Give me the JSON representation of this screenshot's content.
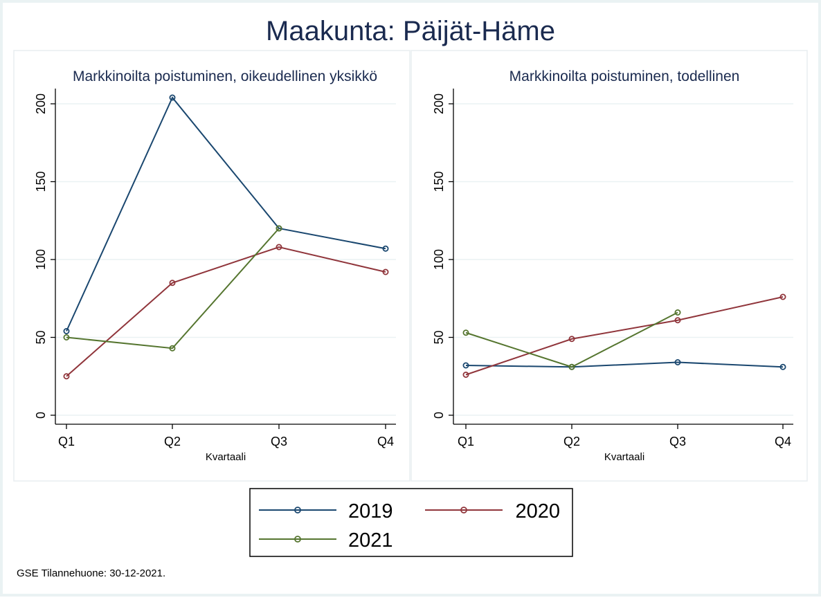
{
  "title": "Maakunta: Päijät-Häme",
  "note": "GSE Tilannehuone: 30-12-2021.",
  "colors": {
    "2019": "#1a476f",
    "2020": "#90353b",
    "2021": "#55752f",
    "title": "#1a2a4f",
    "grid": "#eaf2f3",
    "panel_border": "#e8eef0",
    "outer_bg": "#eaf2f3"
  },
  "legend": {
    "items": [
      {
        "name": "2019",
        "color": "#1a476f"
      },
      {
        "name": "2020",
        "color": "#90353b"
      },
      {
        "name": "2021",
        "color": "#55752f"
      }
    ]
  },
  "chart_data": [
    {
      "type": "line",
      "title": "Markkinoilta poistuminen, oikeudellinen yksikkö",
      "xlabel": "Kvartaali",
      "ylabel": "",
      "categories": [
        "Q1",
        "Q2",
        "Q3",
        "Q4"
      ],
      "yticks": [
        0,
        50,
        100,
        150,
        200
      ],
      "ylim": [
        0,
        210
      ],
      "grid": true,
      "series": [
        {
          "name": "2019",
          "values": [
            54,
            204,
            120,
            107
          ]
        },
        {
          "name": "2020",
          "values": [
            25,
            85,
            108,
            92
          ]
        },
        {
          "name": "2021",
          "values": [
            50,
            43,
            120,
            null
          ]
        }
      ]
    },
    {
      "type": "line",
      "title": "Markkinoilta poistuminen, todellinen",
      "xlabel": "Kvartaali",
      "ylabel": "",
      "categories": [
        "Q1",
        "Q2",
        "Q3",
        "Q4"
      ],
      "yticks": [
        0,
        50,
        100,
        150,
        200
      ],
      "ylim": [
        0,
        210
      ],
      "grid": true,
      "series": [
        {
          "name": "2019",
          "values": [
            32,
            31,
            34,
            31
          ]
        },
        {
          "name": "2020",
          "values": [
            26,
            49,
            61,
            76
          ]
        },
        {
          "name": "2021",
          "values": [
            53,
            31,
            66,
            null
          ]
        }
      ]
    }
  ]
}
